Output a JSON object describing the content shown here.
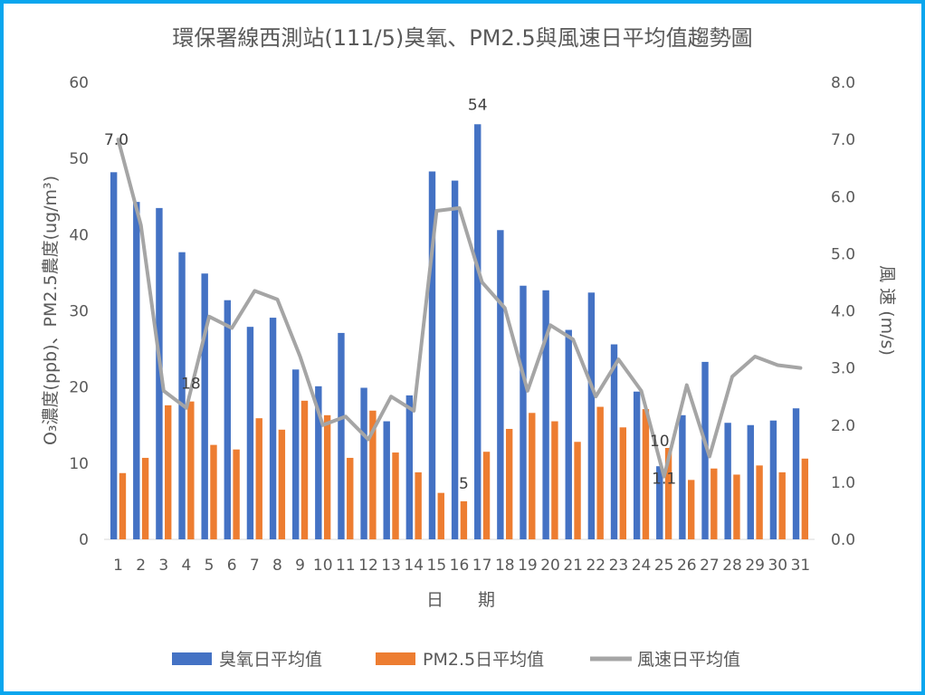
{
  "chart_data": {
    "type": "bar",
    "title": "環保署線西測站(111/5)臭氧、PM2.5與風速日平均值趨勢圖",
    "xlabel": "日　　期",
    "ylabel_left": "O₃濃度(ppb)、PM2.5農度(ug/m³)",
    "ylabel_right": "風 速 (m/s)",
    "ylim_left": [
      0,
      60
    ],
    "ylim_right": [
      0.0,
      8.0
    ],
    "yticks_left": [
      "0",
      "10",
      "20",
      "30",
      "40",
      "50",
      "60"
    ],
    "yticks_right": [
      "0.0",
      "1.0",
      "2.0",
      "3.0",
      "4.0",
      "5.0",
      "6.0",
      "7.0",
      "8.0"
    ],
    "categories": [
      "1",
      "2",
      "3",
      "4",
      "5",
      "6",
      "7",
      "8",
      "9",
      "10",
      "11",
      "12",
      "13",
      "14",
      "15",
      "16",
      "17",
      "18",
      "19",
      "20",
      "21",
      "22",
      "23",
      "24",
      "25",
      "26",
      "27",
      "28",
      "29",
      "30",
      "31"
    ],
    "grid": false,
    "legend_position": "bottom",
    "series": [
      {
        "name": "臭氧日平均值",
        "type": "bar",
        "axis": "left",
        "color": "#4472c4",
        "values": [
          48.2,
          44.3,
          43.5,
          37.7,
          34.9,
          31.4,
          27.9,
          29.1,
          22.3,
          20.1,
          27.1,
          19.9,
          15.5,
          18.9,
          48.3,
          47.1,
          54.5,
          40.6,
          33.3,
          32.7,
          27.5,
          32.4,
          25.6,
          19.4,
          9.6,
          16.3,
          23.3,
          15.3,
          15.0,
          15.6,
          17.2
        ]
      },
      {
        "name": "PM2.5日平均值",
        "type": "bar",
        "axis": "left",
        "color": "#ed7d31",
        "values": [
          8.7,
          10.7,
          17.6,
          18.1,
          12.4,
          11.8,
          15.9,
          14.4,
          18.2,
          16.3,
          10.7,
          16.9,
          11.4,
          8.8,
          6.1,
          5.0,
          11.5,
          14.5,
          16.6,
          15.5,
          12.8,
          17.4,
          14.7,
          17.1,
          12.0,
          7.8,
          9.3,
          8.5,
          9.7,
          8.8,
          10.6
        ]
      },
      {
        "name": "風速日平均值",
        "type": "line",
        "axis": "right",
        "color": "#a5a5a5",
        "values": [
          7.0,
          5.5,
          2.6,
          2.3,
          3.9,
          3.7,
          4.35,
          4.2,
          3.2,
          2.0,
          2.15,
          1.75,
          2.5,
          2.25,
          5.75,
          5.8,
          4.5,
          4.05,
          2.6,
          3.75,
          3.5,
          2.5,
          3.15,
          2.6,
          1.1,
          2.7,
          1.45,
          2.85,
          3.2,
          3.05,
          3.0
        ]
      }
    ],
    "annotations": [
      {
        "series": 0,
        "index": 16,
        "text": "54"
      },
      {
        "series": 1,
        "index": 3,
        "text": "18"
      },
      {
        "series": 1,
        "index": 15,
        "text": "5"
      },
      {
        "series": 0,
        "index": 24,
        "text": "10"
      },
      {
        "series": 2,
        "index": 0,
        "text": "7.0"
      },
      {
        "series": 2,
        "index": 24,
        "text": "1.1"
      }
    ]
  }
}
